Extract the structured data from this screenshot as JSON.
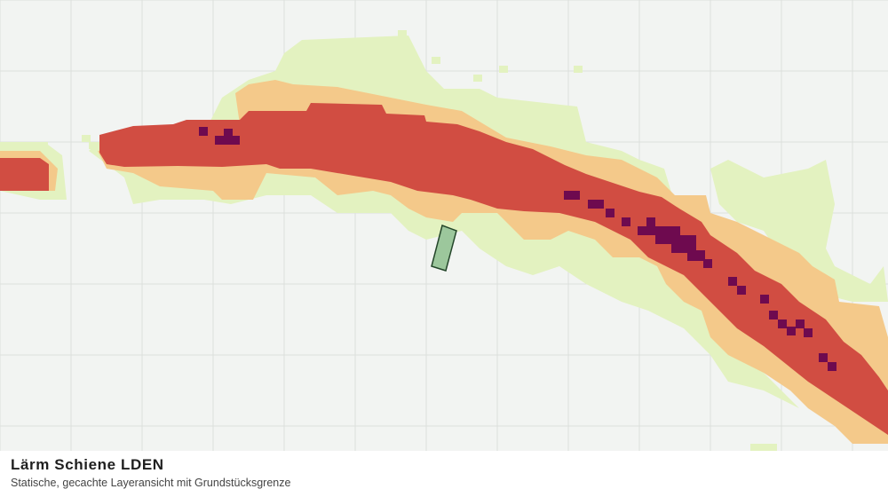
{
  "caption": {
    "title": "Lärm Schiene LDEN",
    "subtitle": "Statische, gecachte Layeransicht mit Grundstücksgrenze"
  },
  "map": {
    "layer": "noise-rail-lden",
    "background_color": "#f2f4f2",
    "grid_color": "#dcdfdc",
    "noise_classes": [
      {
        "name": "class-1",
        "color": "#e3f2c0"
      },
      {
        "name": "class-2",
        "color": "#f4c98a"
      },
      {
        "name": "class-3",
        "color": "#d14d42"
      },
      {
        "name": "class-4",
        "color": "#6e0a4f"
      }
    ],
    "parcel": {
      "fill": "#9cc79c",
      "stroke": "#24462a"
    }
  }
}
